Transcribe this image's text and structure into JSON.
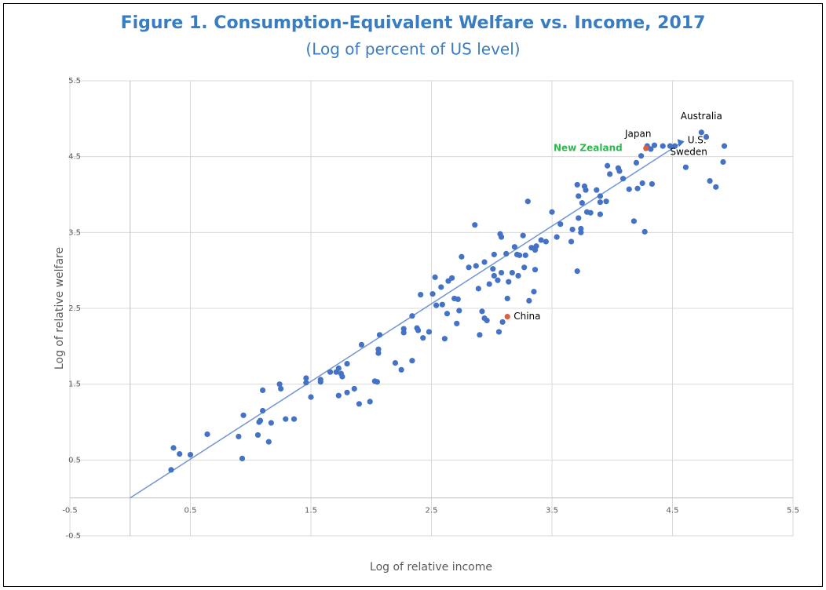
{
  "chart_data": {
    "type": "scatter",
    "title": "Figure 1. Consumption-Equivalent Welfare vs. Income, 2017",
    "subtitle": "(Log of percent of US level)",
    "x_label": "Log of relative income",
    "y_label": "Log of relative welfare",
    "xlim": [
      -0.5,
      5.5
    ],
    "ylim": [
      -0.5,
      5.5
    ],
    "xticks": [
      -0.5,
      0.5,
      1.5,
      2.5,
      3.5,
      4.5,
      5.5
    ],
    "yticks": [
      -0.5,
      0.5,
      1.5,
      2.5,
      3.5,
      4.5,
      5.5
    ],
    "grid": true,
    "color": "#4472c4",
    "x": [
      0.34,
      0.36,
      0.41,
      0.5,
      0.64,
      0.9,
      0.93,
      0.94,
      1.06,
      1.07,
      1.08,
      1.1,
      1.1,
      1.15,
      1.17,
      1.24,
      1.25,
      1.29,
      1.36,
      1.46,
      1.46,
      1.5,
      1.58,
      1.58,
      1.66,
      1.71,
      1.73,
      1.75,
      1.73,
      1.76,
      1.8,
      1.8,
      1.86,
      1.9,
      1.92,
      1.99,
      2.03,
      2.05,
      2.06,
      2.06,
      2.07,
      2.2,
      2.25,
      2.27,
      2.27,
      2.34,
      2.34,
      2.38,
      2.39,
      2.41,
      2.43,
      2.48,
      2.51,
      2.53,
      2.54,
      2.58,
      2.59,
      2.61,
      2.63,
      2.64,
      2.67,
      2.69,
      2.71,
      2.72,
      2.73,
      2.75,
      2.81,
      2.86,
      2.87,
      2.89,
      2.9,
      2.92,
      2.94,
      2.94,
      2.96,
      2.98,
      3.01,
      3.02,
      3.02,
      3.05,
      3.06,
      3.07,
      3.08,
      3.08,
      3.09,
      3.12,
      3.13,
      3.14,
      3.17,
      3.19,
      3.21,
      3.22,
      3.23,
      3.26,
      3.27,
      3.28,
      3.3,
      3.31,
      3.33,
      3.35,
      3.36,
      3.36,
      3.37,
      3.41,
      3.45,
      3.5,
      3.54,
      3.57,
      3.66,
      3.67,
      3.71,
      3.71,
      3.72,
      3.72,
      3.74,
      3.74,
      3.75,
      3.77,
      3.78,
      3.79,
      3.82,
      3.87,
      3.9,
      3.9,
      3.9,
      3.95,
      3.96,
      3.98,
      4.05,
      4.06,
      4.09,
      4.14,
      4.18,
      4.2,
      4.21,
      4.24,
      4.25,
      4.27,
      4.29,
      4.32,
      4.33,
      4.42,
      4.52,
      4.61,
      4.78,
      4.81,
      4.86,
      4.92,
      4.93
    ],
    "y": [
      0.37,
      0.66,
      0.58,
      0.57,
      0.84,
      0.81,
      0.52,
      1.09,
      0.83,
      1.0,
      1.02,
      1.15,
      1.42,
      0.74,
      0.99,
      1.5,
      1.44,
      1.04,
      1.04,
      1.52,
      1.58,
      1.33,
      1.56,
      1.53,
      1.66,
      1.66,
      1.71,
      1.64,
      1.35,
      1.6,
      1.77,
      1.39,
      1.44,
      1.24,
      2.02,
      1.27,
      1.54,
      1.53,
      1.96,
      1.91,
      2.15,
      1.78,
      1.69,
      2.23,
      2.18,
      2.4,
      1.81,
      2.24,
      2.21,
      2.68,
      2.11,
      2.19,
      2.69,
      2.91,
      2.54,
      2.78,
      2.55,
      2.1,
      2.43,
      2.86,
      2.9,
      2.63,
      2.3,
      2.62,
      2.47,
      3.18,
      3.04,
      3.6,
      3.06,
      2.76,
      2.15,
      2.46,
      2.37,
      3.11,
      2.34,
      2.82,
      3.02,
      2.93,
      3.21,
      2.87,
      2.19,
      3.48,
      3.44,
      2.97,
      2.32,
      3.22,
      2.63,
      2.85,
      2.97,
      3.31,
      3.21,
      2.93,
      3.2,
      3.46,
      3.04,
      3.2,
      3.91,
      2.6,
      3.3,
      2.72,
      3.27,
      3.01,
      3.32,
      3.4,
      3.38,
      3.77,
      3.44,
      3.61,
      3.38,
      3.54,
      2.99,
      4.13,
      3.98,
      3.69,
      3.55,
      3.5,
      3.89,
      4.11,
      4.06,
      3.77,
      3.76,
      4.06,
      3.98,
      3.74,
      3.9,
      3.91,
      4.38,
      4.27,
      4.35,
      4.31,
      4.21,
      4.07,
      3.65,
      4.42,
      4.08,
      4.51,
      4.15,
      3.51,
      4.64,
      4.6,
      4.14,
      4.64,
      4.64,
      4.36,
      4.76,
      4.18,
      4.1,
      4.43,
      4.64
    ],
    "ref_line": {
      "x": [
        0,
        4.56
      ],
      "y": [
        0,
        4.67
      ],
      "color": "#6f95d6"
    },
    "labeled_points": [
      {
        "label": "China",
        "x": 3.13,
        "y": 2.39,
        "color": "#e0603c",
        "label_color": "#000000"
      },
      {
        "label": "New Zealand",
        "x": 4.28,
        "y": 4.61,
        "color": "#e0603c",
        "label_color": "#2db84d"
      },
      {
        "label": "Japan",
        "x": 4.35,
        "y": 4.65,
        "color": "#4472c4",
        "label_color": "#000000"
      },
      {
        "label": "Australia",
        "x": 4.74,
        "y": 4.82,
        "color": "#4472c4",
        "label_color": "#000000"
      },
      {
        "label": "Sweden",
        "x": 4.48,
        "y": 4.64,
        "color": "#4472c4",
        "label_color": "#000000"
      },
      {
        "label": "U.S.",
        "x": 4.56,
        "y": 4.67,
        "color": "#4472c4",
        "label_color": "#000000"
      }
    ]
  }
}
